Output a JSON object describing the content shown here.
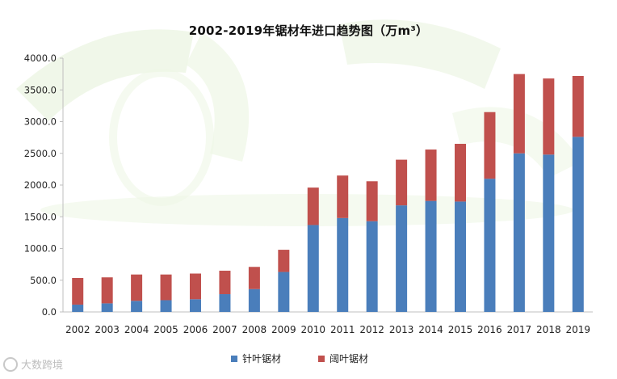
{
  "chart_data": {
    "type": "bar",
    "stacked": true,
    "title": "2002-2019年锯材年进口趋势图（万m³）",
    "categories": [
      "2002",
      "2003",
      "2004",
      "2005",
      "2006",
      "2007",
      "2008",
      "2009",
      "2010",
      "2011",
      "2012",
      "2013",
      "2014",
      "2015",
      "2016",
      "2017",
      "2018",
      "2019"
    ],
    "series": [
      {
        "name": "针叶锯材",
        "color": "#4a7ebb",
        "values": [
          115,
          135,
          175,
          185,
          200,
          280,
          360,
          630,
          1370,
          1480,
          1430,
          1680,
          1750,
          1740,
          2100,
          2500,
          2480,
          2760
        ]
      },
      {
        "name": "阔叶锯材",
        "color": "#c0504d",
        "values": [
          420,
          410,
          415,
          405,
          405,
          370,
          350,
          350,
          590,
          670,
          630,
          720,
          810,
          910,
          1050,
          1250,
          1200,
          960
        ]
      }
    ],
    "ylim": [
      0,
      4000
    ],
    "yticks": [
      "0.0",
      "500.0",
      "1000.0",
      "1500.0",
      "2000.0",
      "2500.0",
      "3000.0",
      "3500.0",
      "4000.0"
    ],
    "grid": false,
    "legend_position": "bottom"
  },
  "watermark": {
    "text": "大数跨境"
  },
  "colors": {
    "background_tint": "#e6f2da",
    "axis": "#bfbfbf"
  }
}
